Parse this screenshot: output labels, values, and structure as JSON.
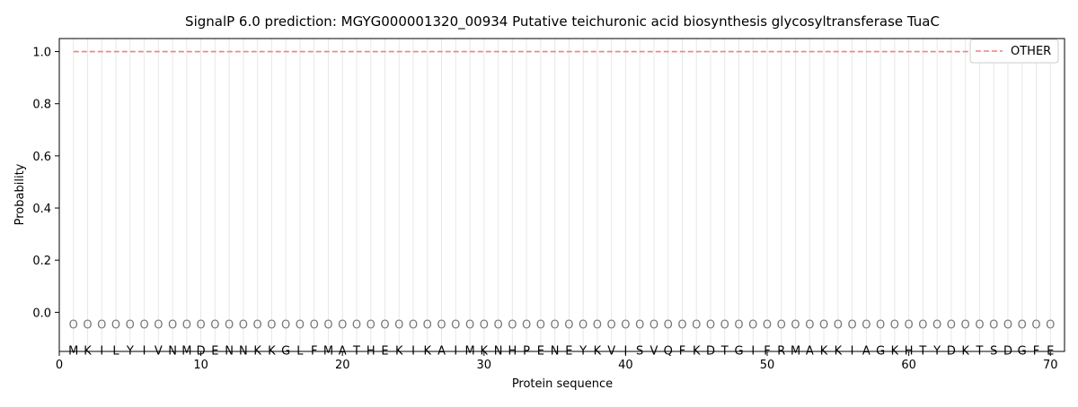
{
  "chart_data": {
    "type": "line",
    "title": "SignalP 6.0 prediction: MGYG000001320_00934 Putative teichuronic acid biosynthesis glycosyltransferase TuaC",
    "xlabel": "Protein sequence",
    "ylabel": "Probability",
    "xlim": [
      0,
      71
    ],
    "ylim": [
      -0.15,
      1.05
    ],
    "x_ticks": [
      0,
      10,
      20,
      30,
      40,
      50,
      60,
      70
    ],
    "y_ticks": [
      0.0,
      0.2,
      0.4,
      0.6,
      0.8,
      1.0
    ],
    "grid": "vertical lines at each residue position",
    "legend": {
      "placement": "top-right",
      "entries": [
        "OTHER"
      ]
    },
    "sequence": [
      "M",
      "K",
      "I",
      "L",
      "Y",
      "I",
      "V",
      "N",
      "M",
      "D",
      "E",
      "N",
      "N",
      "K",
      "K",
      "G",
      "L",
      "F",
      "M",
      "A",
      "T",
      "H",
      "E",
      "K",
      "I",
      "K",
      "A",
      "I",
      "M",
      "K",
      "N",
      "H",
      "P",
      "E",
      "N",
      "E",
      "Y",
      "K",
      "V",
      "I",
      "S",
      "V",
      "Q",
      "F",
      "K",
      "D",
      "T",
      "G",
      "I",
      "F",
      "R",
      "M",
      "A",
      "K",
      "K",
      "I",
      "A",
      "G",
      "K",
      "H",
      "T",
      "Y",
      "D",
      "K",
      "T",
      "S",
      "D",
      "G",
      "F",
      "E"
    ],
    "position_marker": "O",
    "position_marker_y": -0.045,
    "series": [
      {
        "name": "OTHER",
        "color": "#f08080",
        "style": "dashed",
        "x_start": 1,
        "x_end": 70,
        "value": 1.0
      }
    ]
  }
}
